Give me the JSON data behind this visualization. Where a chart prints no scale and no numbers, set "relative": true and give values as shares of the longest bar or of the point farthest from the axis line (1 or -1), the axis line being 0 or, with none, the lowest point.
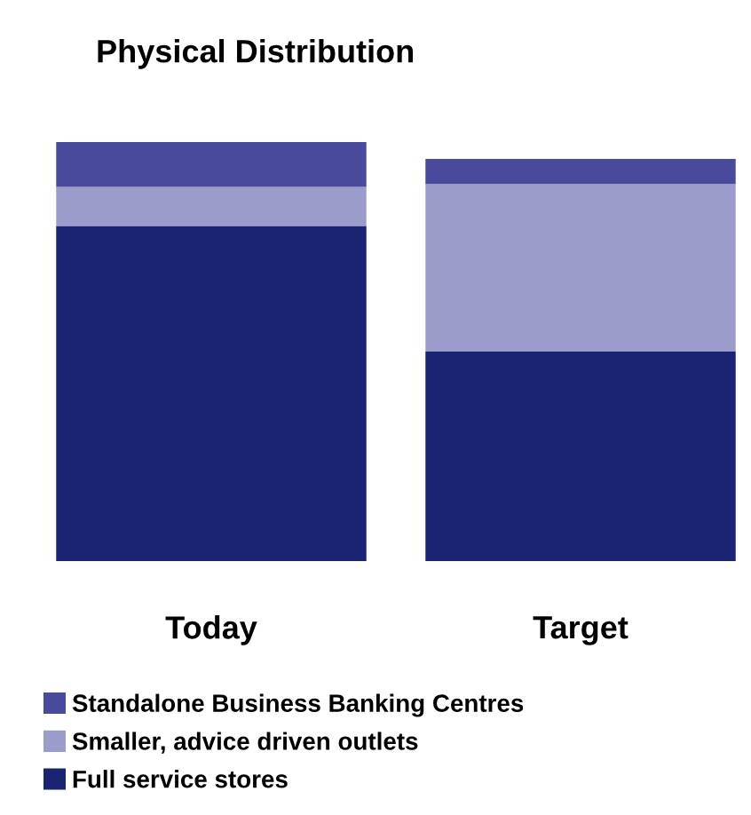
{
  "chart_data": {
    "type": "bar",
    "title": "Physical Distribution",
    "categories": [
      "Today",
      "Target"
    ],
    "stacked": true,
    "relative": true,
    "legend": "bottom",
    "series": [
      {
        "name": "Full service stores",
        "color": "#1a2472",
        "values": [
          0.8,
          0.5
        ]
      },
      {
        "name": "Smaller, advice driven outlets",
        "color": "#9c9ccc",
        "values": [
          0.093,
          0.4
        ]
      },
      {
        "name": "Standalone Business Banking Centres",
        "color": "#4a4a9c",
        "values": [
          0.107,
          0.06
        ]
      }
    ]
  }
}
